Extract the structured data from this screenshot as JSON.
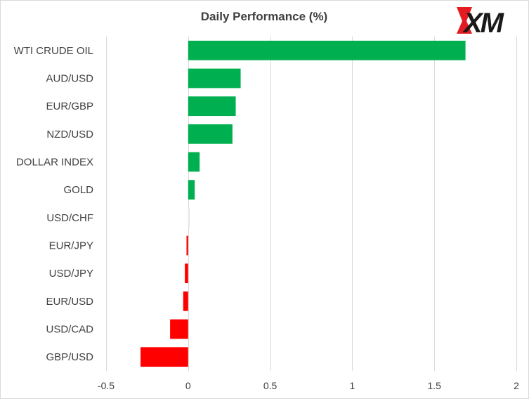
{
  "logo": {
    "text": "XM",
    "accent_color": "#e31b23"
  },
  "chart_data": {
    "type": "bar",
    "orientation": "horizontal",
    "title": "Daily Performance (%)",
    "categories": [
      "WTI CRUDE OIL",
      "AUD/USD",
      "EUR/GBP",
      "NZD/USD",
      "DOLLAR INDEX",
      "GOLD",
      "USD/CHF",
      "EUR/JPY",
      "USD/JPY",
      "EUR/USD",
      "USD/CAD",
      "GBP/USD"
    ],
    "values": [
      1.69,
      0.32,
      0.29,
      0.27,
      0.07,
      0.04,
      0.01,
      -0.01,
      -0.02,
      -0.03,
      -0.11,
      -0.29
    ],
    "xlim": [
      -0.5,
      2
    ],
    "xticks": [
      -0.5,
      0,
      0.5,
      1,
      1.5,
      2
    ],
    "xtick_labels": [
      "-0.5",
      "0",
      "0.5",
      "1",
      "1.5",
      "2"
    ],
    "grid": "vertical",
    "legend": "none",
    "colors": {
      "positive": "#00b050",
      "negative": "#ff0000",
      "neutral": "#e6e6e6",
      "grid": "#d9d9d9",
      "text": "#404040"
    }
  }
}
